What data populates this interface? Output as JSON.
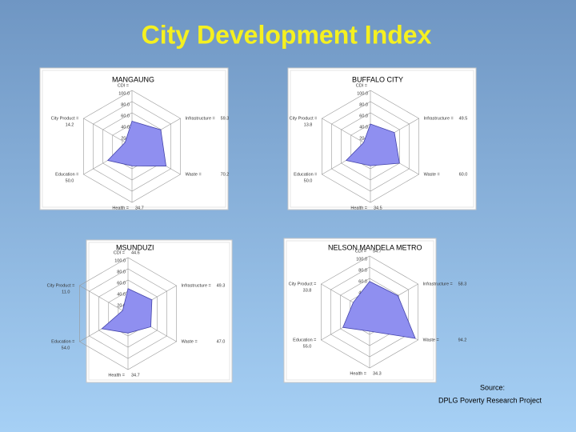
{
  "title": "City Development Index",
  "source": [
    "Source:",
    "DPLG Poverty Research Project"
  ],
  "chart_data": [
    {
      "type": "radar",
      "title": "MANGAUNG",
      "categories": [
        "CDI =",
        "Infrastructure =",
        "Waste =",
        "Health =",
        "Education =",
        "City Product ="
      ],
      "values": [
        45,
        59.3,
        70.2,
        34.7,
        50,
        14.2
      ],
      "value_labels": [
        null,
        "59.3",
        "70.2",
        "34.7",
        "50.0",
        "14.2"
      ],
      "ylim": [
        0,
        100
      ],
      "yticks": [
        {
          "value": 0,
          "label": "0.0"
        },
        {
          "value": 20,
          "label": "20.0"
        },
        {
          "value": 40,
          "label": "40.0"
        },
        {
          "value": 60,
          "label": "60.0"
        },
        {
          "value": 80,
          "label": "80.0"
        },
        {
          "value": 100,
          "label": "100.0"
        }
      ],
      "color": "#8f8ff0",
      "grid": true
    },
    {
      "type": "radar",
      "title": "BUFFALO CITY",
      "categories": [
        "CDI =",
        "Infrastructure =",
        "Waste =",
        "Health =",
        "Education =",
        "City Product ="
      ],
      "values": [
        40,
        49.5,
        60,
        34.5,
        50,
        13.8
      ],
      "value_labels": [
        null,
        "49.5",
        "60.0",
        "34.5",
        "50.0",
        "13.8"
      ],
      "ylim": [
        0,
        100
      ],
      "yticks": [
        {
          "value": 0,
          "label": "0.0"
        },
        {
          "value": 20,
          "label": "20.0"
        },
        {
          "value": 40,
          "label": "40.0"
        },
        {
          "value": 60,
          "label": "60.0"
        },
        {
          "value": 80,
          "label": "80.0"
        },
        {
          "value": 100,
          "label": "100.0"
        }
      ],
      "color": "#8f8ff0",
      "grid": true
    },
    {
      "type": "radar",
      "title": "MSUNDUZI",
      "categories": [
        "CDI =",
        "Infrastructure =",
        "Waste =",
        "Health =",
        "Education =",
        "City Product ="
      ],
      "values": [
        44.6,
        49.3,
        47,
        34.7,
        54,
        11
      ],
      "value_labels": [
        "44.6",
        "49.3",
        "47.0",
        "34.7",
        "54.0",
        "11.0"
      ],
      "ylim": [
        0,
        100
      ],
      "yticks": [
        {
          "value": 0,
          "label": "0.0"
        },
        {
          "value": 20,
          "label": "20.0"
        },
        {
          "value": 40,
          "label": "40.0"
        },
        {
          "value": 60,
          "label": "60.0"
        },
        {
          "value": 80,
          "label": "80.0"
        },
        {
          "value": 100,
          "label": "100.0"
        }
      ],
      "color": "#8f8ff0",
      "grid": true
    },
    {
      "type": "radar",
      "title": "NELSON MANDELA  METRO",
      "categories": [
        "CDI =",
        "Infrastructure =",
        "Waste =",
        "Health =",
        "Education =",
        "City Product ="
      ],
      "values": [
        54.7,
        58.3,
        94.2,
        34.3,
        55,
        33.8
      ],
      "value_labels": [
        "54.7",
        "58.3",
        "94.2",
        "34.3",
        "55.0",
        "33.8"
      ],
      "ylim": [
        0,
        100
      ],
      "yticks": [
        {
          "value": 0,
          "label": "0.0"
        },
        {
          "value": 20,
          "label": "20.0"
        },
        {
          "value": 40,
          "label": "40.0"
        },
        {
          "value": 60,
          "label": "60.0"
        },
        {
          "value": 80,
          "label": "80.0"
        },
        {
          "value": 100,
          "label": "100.0"
        }
      ],
      "color": "#8f8ff0",
      "grid": true
    }
  ]
}
